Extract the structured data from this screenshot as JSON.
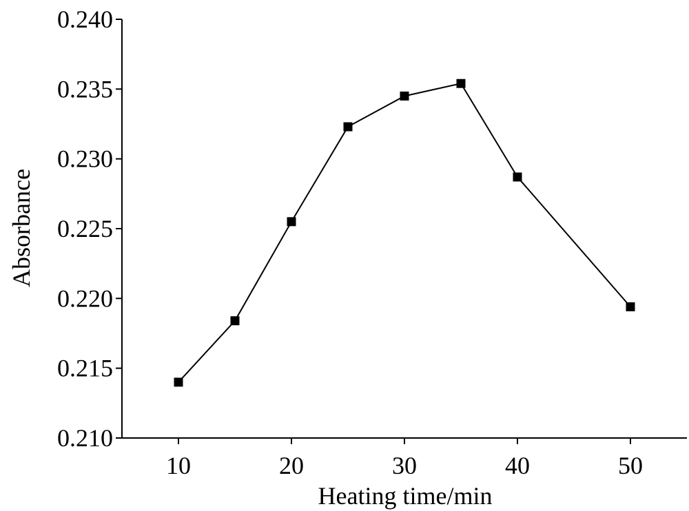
{
  "chart_data": {
    "type": "line",
    "title": "",
    "xlabel": "Heating time/min",
    "ylabel": "Absorbance",
    "xlim": [
      5,
      55
    ],
    "ylim": [
      0.21,
      0.24
    ],
    "x_ticks": [
      10,
      20,
      30,
      40,
      50
    ],
    "x_tick_labels": [
      "10",
      "20",
      "30",
      "40",
      "50"
    ],
    "y_ticks": [
      0.21,
      0.215,
      0.22,
      0.225,
      0.23,
      0.235,
      0.24
    ],
    "y_tick_labels": [
      "0.210",
      "0.215",
      "0.220",
      "0.225",
      "0.230",
      "0.235",
      "0.240"
    ],
    "grid": false,
    "marker": "square",
    "line_color": "#000000",
    "marker_color": "#000000",
    "series": [
      {
        "x": [
          10,
          15,
          20,
          25,
          30,
          35,
          40,
          50
        ],
        "y": [
          0.214,
          0.2184,
          0.2255,
          0.2323,
          0.2345,
          0.2354,
          0.2287,
          0.2194
        ]
      }
    ]
  }
}
